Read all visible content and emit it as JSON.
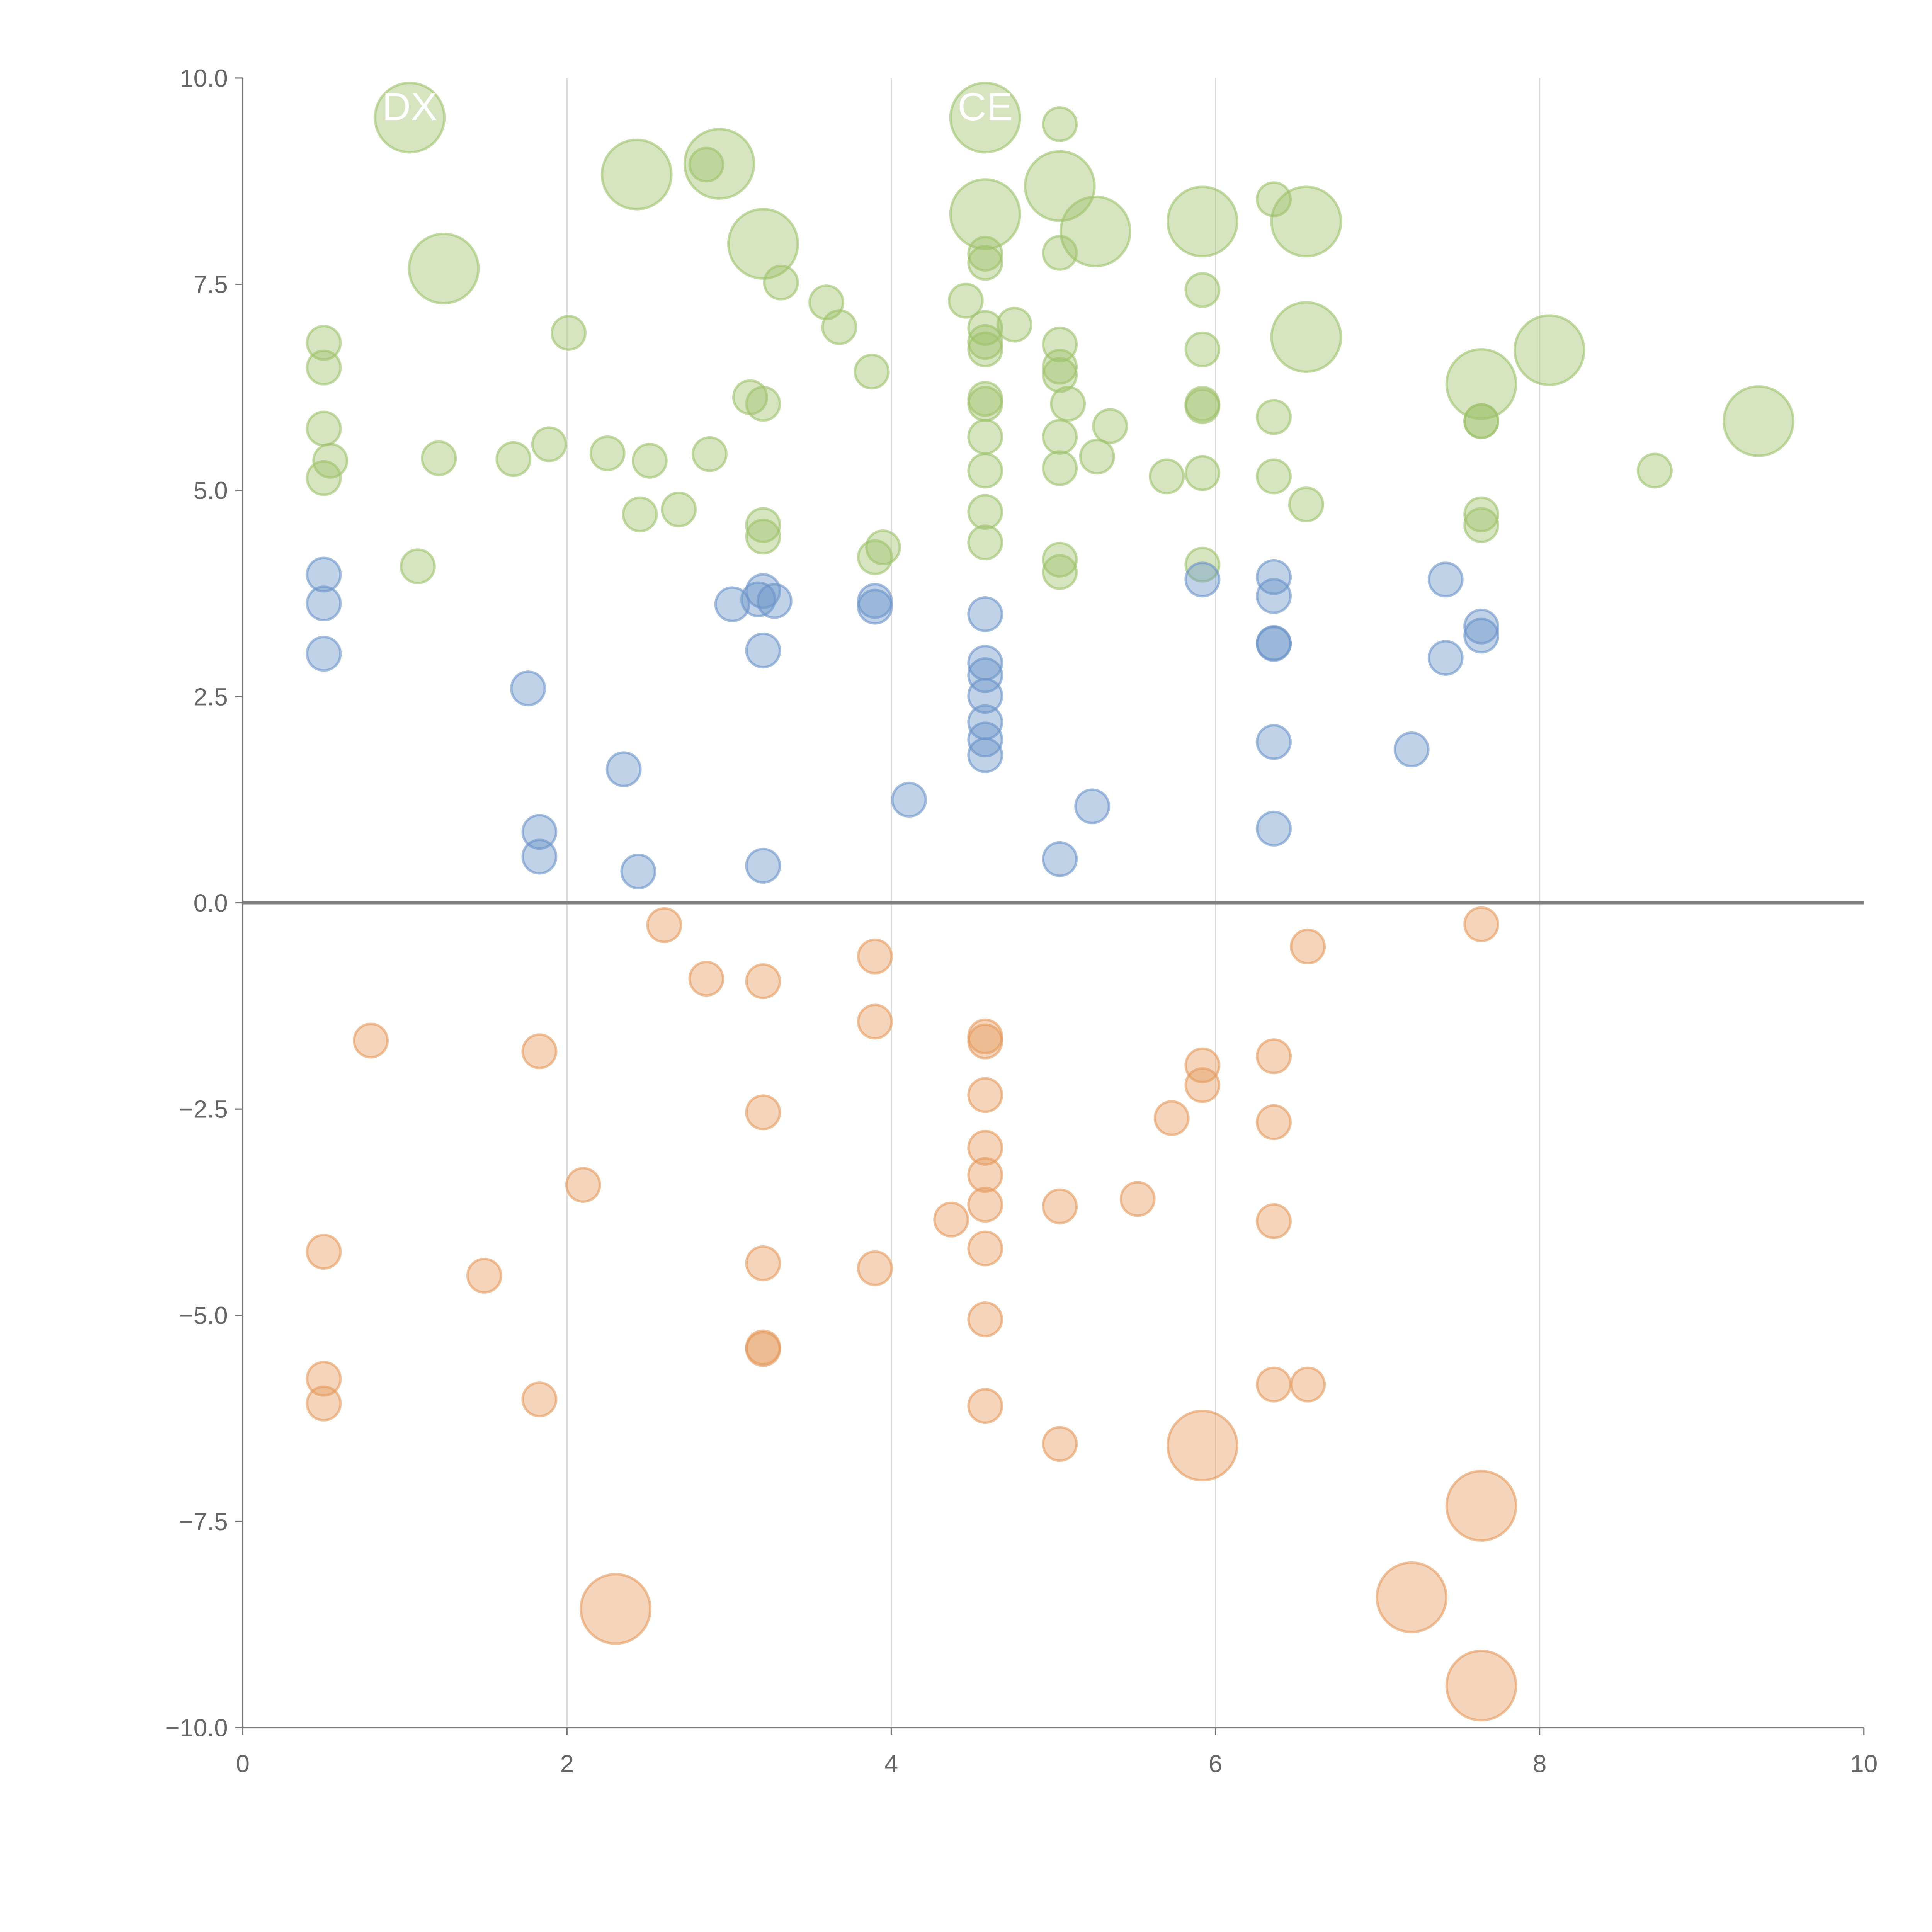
{
  "chart_data": {
    "type": "scatter",
    "title": "",
    "xlabel": "",
    "ylabel": "",
    "xlim": [
      0,
      10
    ],
    "ylim": [
      -10,
      10
    ],
    "grid": "vertical at x ticks",
    "xticks": [
      "0",
      "2",
      "4",
      "6",
      "8",
      "10"
    ],
    "yticks": [
      "10.0",
      "7.5",
      "5.0",
      "2.5",
      "0.0",
      "−2.5",
      "−5.0",
      "−7.5",
      "−10.0"
    ],
    "annotations": [
      {
        "text": "DX",
        "x": 1.03,
        "y": 9.7
      },
      {
        "text": "CE",
        "x": 4.58,
        "y": 9.7
      }
    ],
    "series": [
      {
        "name": "green",
        "color": "#9dc26a",
        "points": [
          [
            1.03,
            9.52,
            2
          ],
          [
            2.43,
            8.83,
            2
          ],
          [
            2.94,
            8.96,
            2
          ],
          [
            2.86,
            8.95,
            1
          ],
          [
            1.24,
            7.69,
            2
          ],
          [
            3.21,
            7.99,
            2
          ],
          [
            3.32,
            7.52,
            1
          ],
          [
            2.01,
            6.91,
            1
          ],
          [
            3.6,
            7.28,
            1
          ],
          [
            3.68,
            6.98,
            1
          ],
          [
            3.88,
            6.44,
            1
          ],
          [
            4.46,
            7.3,
            1
          ],
          [
            4.58,
            9.52,
            2
          ],
          [
            5.04,
            9.44,
            1
          ],
          [
            5.04,
            8.69,
            2
          ],
          [
            5.26,
            8.14,
            2
          ],
          [
            4.58,
            8.35,
            2
          ],
          [
            4.58,
            7.87,
            1
          ],
          [
            4.58,
            7.76,
            1
          ],
          [
            5.04,
            7.88,
            1
          ],
          [
            5.92,
            8.26,
            2
          ],
          [
            6.36,
            8.53,
            1
          ],
          [
            6.56,
            8.26,
            2
          ],
          [
            5.92,
            7.43,
            1
          ],
          [
            6.56,
            6.86,
            2
          ],
          [
            5.92,
            6.71,
            1
          ],
          [
            8.06,
            6.7,
            2
          ],
          [
            7.64,
            6.29,
            2
          ],
          [
            9.35,
            5.84,
            2
          ],
          [
            8.71,
            5.24,
            1
          ],
          [
            0.5,
            6.79,
            1
          ],
          [
            0.5,
            6.49,
            1
          ],
          [
            0.5,
            5.75,
            1
          ],
          [
            0.54,
            5.36,
            1
          ],
          [
            0.5,
            5.15,
            1
          ],
          [
            1.21,
            5.39,
            1
          ],
          [
            1.67,
            5.38,
            1
          ],
          [
            1.89,
            5.56,
            1
          ],
          [
            2.25,
            5.45,
            1
          ],
          [
            2.51,
            5.36,
            1
          ],
          [
            2.88,
            5.44,
            1
          ],
          [
            2.45,
            4.71,
            1
          ],
          [
            2.69,
            4.77,
            1
          ],
          [
            1.08,
            4.08,
            1
          ],
          [
            3.13,
            6.13,
            1
          ],
          [
            3.21,
            6.05,
            1
          ],
          [
            3.21,
            4.58,
            1
          ],
          [
            3.21,
            4.44,
            1
          ],
          [
            3.9,
            4.19,
            1
          ],
          [
            3.95,
            4.31,
            1
          ],
          [
            4.58,
            6.97,
            1
          ],
          [
            4.58,
            6.8,
            1
          ],
          [
            4.58,
            6.71,
            1
          ],
          [
            4.76,
            7.01,
            1
          ],
          [
            4.58,
            6.11,
            1
          ],
          [
            4.58,
            6.05,
            1
          ],
          [
            4.58,
            5.65,
            1
          ],
          [
            4.58,
            5.24,
            1
          ],
          [
            4.58,
            4.74,
            1
          ],
          [
            4.58,
            4.37,
            1
          ],
          [
            5.04,
            6.77,
            1
          ],
          [
            5.04,
            6.5,
            1
          ],
          [
            5.04,
            6.4,
            1
          ],
          [
            5.09,
            6.05,
            1
          ],
          [
            5.04,
            5.65,
            1
          ],
          [
            5.04,
            5.27,
            1
          ],
          [
            5.27,
            5.41,
            1
          ],
          [
            5.35,
            5.78,
            1
          ],
          [
            5.04,
            4.16,
            1
          ],
          [
            5.04,
            4.01,
            1
          ],
          [
            5.7,
            5.17,
            1
          ],
          [
            5.92,
            6.05,
            1
          ],
          [
            5.92,
            6.02,
            1
          ],
          [
            5.92,
            5.21,
            1
          ],
          [
            5.92,
            4.1,
            1
          ],
          [
            6.36,
            5.89,
            1
          ],
          [
            6.36,
            5.17,
            1
          ],
          [
            6.56,
            4.83,
            1
          ],
          [
            7.64,
            5.84,
            1
          ],
          [
            7.64,
            5.84,
            1
          ],
          [
            7.64,
            4.71,
            1
          ],
          [
            7.64,
            4.58,
            1
          ]
        ]
      },
      {
        "name": "blue",
        "color": "#6a93c8",
        "points": [
          [
            0.5,
            3.98,
            1
          ],
          [
            0.5,
            3.63,
            1
          ],
          [
            0.5,
            3.02,
            1
          ],
          [
            1.76,
            2.6,
            1
          ],
          [
            1.83,
            0.86,
            1
          ],
          [
            1.83,
            0.56,
            1
          ],
          [
            2.35,
            1.62,
            1
          ],
          [
            2.44,
            0.38,
            1
          ],
          [
            3.02,
            3.62,
            1
          ],
          [
            3.18,
            3.68,
            1
          ],
          [
            3.21,
            3.78,
            1
          ],
          [
            3.28,
            3.66,
            1
          ],
          [
            3.21,
            3.06,
            1
          ],
          [
            3.21,
            0.45,
            1
          ],
          [
            3.9,
            3.66,
            1
          ],
          [
            3.9,
            3.59,
            1
          ],
          [
            4.11,
            1.25,
            1
          ],
          [
            4.58,
            3.5,
            1
          ],
          [
            4.58,
            2.91,
            1
          ],
          [
            4.58,
            2.76,
            1
          ],
          [
            4.58,
            2.51,
            1
          ],
          [
            4.58,
            2.19,
            1
          ],
          [
            4.58,
            1.98,
            1
          ],
          [
            4.58,
            1.79,
            1
          ],
          [
            5.04,
            0.53,
            1
          ],
          [
            5.24,
            1.17,
            1
          ],
          [
            5.92,
            3.92,
            1
          ],
          [
            6.36,
            3.95,
            1
          ],
          [
            6.36,
            3.72,
            1
          ],
          [
            6.36,
            3.15,
            1
          ],
          [
            6.36,
            3.14,
            1
          ],
          [
            6.36,
            1.95,
            1
          ],
          [
            6.36,
            0.9,
            1
          ],
          [
            7.21,
            1.86,
            1
          ],
          [
            7.42,
            3.92,
            1
          ],
          [
            7.42,
            2.97,
            1
          ],
          [
            7.64,
            3.35,
            1
          ],
          [
            7.64,
            3.24,
            1
          ]
        ]
      },
      {
        "name": "orange",
        "color": "#e49a5e",
        "points": [
          [
            2.6,
            -0.27,
            1
          ],
          [
            2.86,
            -0.92,
            1
          ],
          [
            3.21,
            -0.95,
            1
          ],
          [
            3.9,
            -0.65,
            1
          ],
          [
            3.9,
            -1.44,
            1
          ],
          [
            0.79,
            -1.67,
            1
          ],
          [
            1.83,
            -1.8,
            1
          ],
          [
            4.58,
            -1.62,
            1
          ],
          [
            4.58,
            -1.68,
            1
          ],
          [
            4.58,
            -2.33,
            1
          ],
          [
            3.21,
            -2.54,
            1
          ],
          [
            4.58,
            -2.97,
            1
          ],
          [
            4.58,
            -3.3,
            1
          ],
          [
            4.58,
            -3.66,
            1
          ],
          [
            4.58,
            -4.19,
            1
          ],
          [
            4.37,
            -3.84,
            1
          ],
          [
            5.04,
            -3.68,
            1
          ],
          [
            5.52,
            -3.59,
            1
          ],
          [
            5.73,
            -2.61,
            1
          ],
          [
            5.92,
            -1.97,
            1
          ],
          [
            5.92,
            -2.21,
            1
          ],
          [
            6.36,
            -1.86,
            1
          ],
          [
            6.36,
            -2.66,
            1
          ],
          [
            6.36,
            -3.86,
            1
          ],
          [
            6.57,
            -0.53,
            1
          ],
          [
            7.64,
            -0.26,
            1
          ],
          [
            2.1,
            -3.42,
            1
          ],
          [
            0.5,
            -4.23,
            1
          ],
          [
            1.49,
            -4.52,
            1
          ],
          [
            3.21,
            -4.37,
            1
          ],
          [
            3.9,
            -4.43,
            1
          ],
          [
            4.58,
            -5.05,
            1
          ],
          [
            3.21,
            -5.39,
            1
          ],
          [
            3.21,
            -5.41,
            1
          ],
          [
            0.5,
            -5.77,
            1
          ],
          [
            0.5,
            -6.07,
            1
          ],
          [
            1.83,
            -6.02,
            1
          ],
          [
            4.58,
            -6.1,
            1
          ],
          [
            5.04,
            -6.56,
            1
          ],
          [
            5.92,
            -6.58,
            2
          ],
          [
            6.36,
            -5.84,
            1
          ],
          [
            6.57,
            -5.84,
            1
          ],
          [
            7.64,
            -7.31,
            2
          ],
          [
            7.21,
            -8.42,
            2
          ],
          [
            2.3,
            -8.56,
            2
          ],
          [
            7.64,
            -9.49,
            2
          ]
        ]
      }
    ]
  }
}
